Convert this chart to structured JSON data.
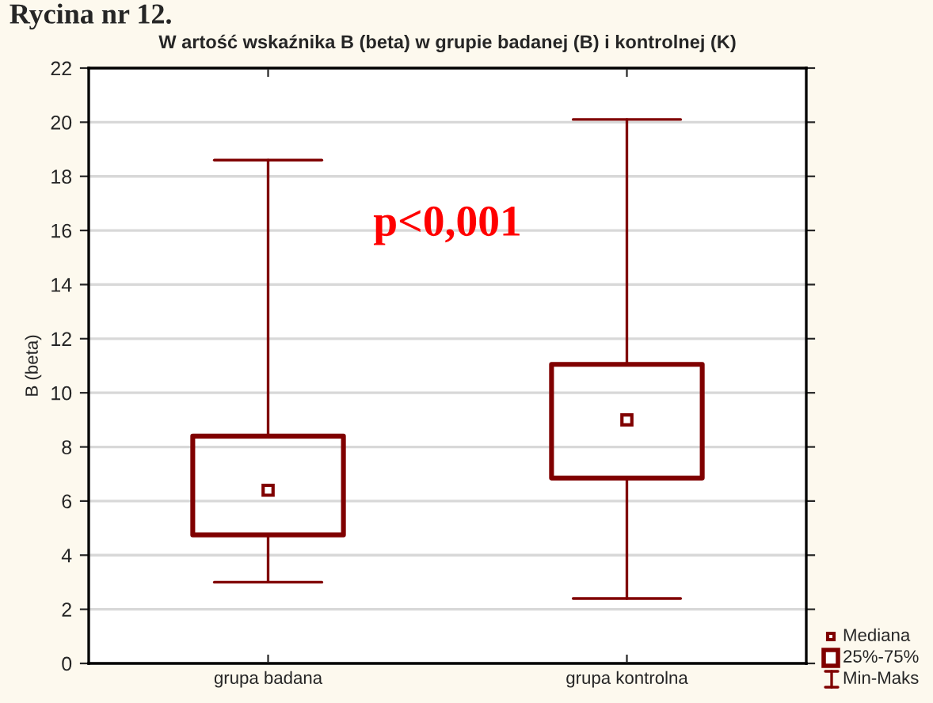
{
  "chart_data": {
    "type": "box",
    "title": "W artość wskaźnika B (beta) w grupie badanej (B) i kontrolnej (K)",
    "ylabel": "B (beta)",
    "categories": [
      "grupa badana",
      "grupa kontrolna"
    ],
    "boxes": [
      {
        "low": 3.0,
        "q1": 4.75,
        "median": 6.4,
        "q3": 8.4,
        "high": 18.6
      },
      {
        "low": 2.4,
        "q1": 6.85,
        "median": 9.0,
        "q3": 11.05,
        "high": 20.1
      }
    ],
    "color": "#800000",
    "ylim": [
      0,
      22
    ],
    "yticks": [
      0,
      2,
      4,
      6,
      8,
      10,
      12,
      14,
      16,
      18,
      20,
      22
    ],
    "grid": "y",
    "annotations": [
      "Rycina nr 12.",
      "p<0,001",
      "Mediana",
      "25%-75%",
      "Min-Maks"
    ]
  }
}
